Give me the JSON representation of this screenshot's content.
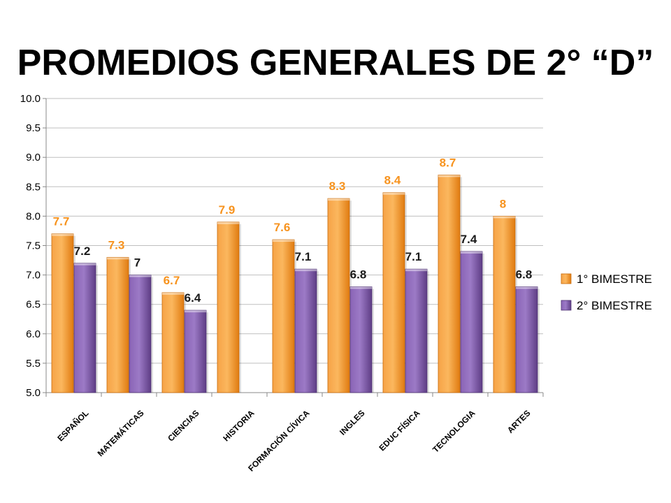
{
  "chart_data": {
    "type": "bar",
    "title": "PROMEDIOS GENERALES DE 2° “D”",
    "categories": [
      "ESPAÑOL",
      "MATEMÁTICAS",
      "CIENCIAS",
      "HISTORIA",
      "FORMACIÓN CÍVICA",
      "INGLES",
      "EDUC FÍSICA",
      "TECNOLOGIA",
      "ARTES"
    ],
    "series": [
      {
        "name": "1° BIMESTRE",
        "color": "#F7931E",
        "values": [
          7.7,
          7.3,
          6.7,
          7.9,
          7.6,
          8.3,
          8.4,
          8.7,
          8
        ],
        "labels": [
          "7.7",
          "7.3",
          "6.7",
          "7.9",
          "7.6",
          "8.3",
          "8.4",
          "8.7",
          "8"
        ]
      },
      {
        "name": "2° BIMESTRE",
        "color": "#7E57A8",
        "values": [
          7.2,
          7,
          6.4,
          null,
          7.1,
          6.8,
          7.1,
          7.4,
          6.8
        ],
        "labels": [
          "7.2",
          "7",
          "6.4",
          "",
          "7.1",
          "6.8",
          "7.1",
          "7.4",
          "6.8"
        ]
      }
    ],
    "ylim": [
      5.0,
      10.0
    ],
    "yticks": [
      "5.0",
      "5.5",
      "6.0",
      "6.5",
      "7.0",
      "7.5",
      "8.0",
      "8.5",
      "9.0",
      "9.5",
      "10.0"
    ],
    "grid": true,
    "legend_position": "right"
  }
}
